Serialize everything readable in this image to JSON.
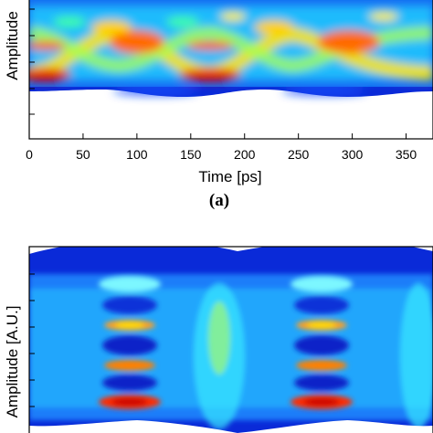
{
  "chart_data": [
    {
      "type": "heatmap",
      "panel_label": "(a)",
      "xlabel": "Time [ps]",
      "ylabel": "Amplitude",
      "xlim": [
        0,
        375
      ],
      "x_ticks": [
        0,
        50,
        100,
        150,
        200,
        250,
        300,
        350
      ],
      "colormap": [
        "#00008f",
        "#0050ff",
        "#00c8ff",
        "#aaff55",
        "#ffee00",
        "#ff7700",
        "#d80000"
      ],
      "eye_crossings_ps": [
        112,
        290
      ],
      "signal": "two-level eye diagram, intensity heat map"
    },
    {
      "type": "heatmap",
      "panel_label": "(b)",
      "xlabel": "",
      "ylabel": "Amplitude [A.U.]",
      "colormap": [
        "#00008f",
        "#0050ff",
        "#00c8ff",
        "#aaff55",
        "#ffee00",
        "#ff7700",
        "#d80000"
      ],
      "signal": "multi-level eye diagram, intensity heat map"
    }
  ]
}
